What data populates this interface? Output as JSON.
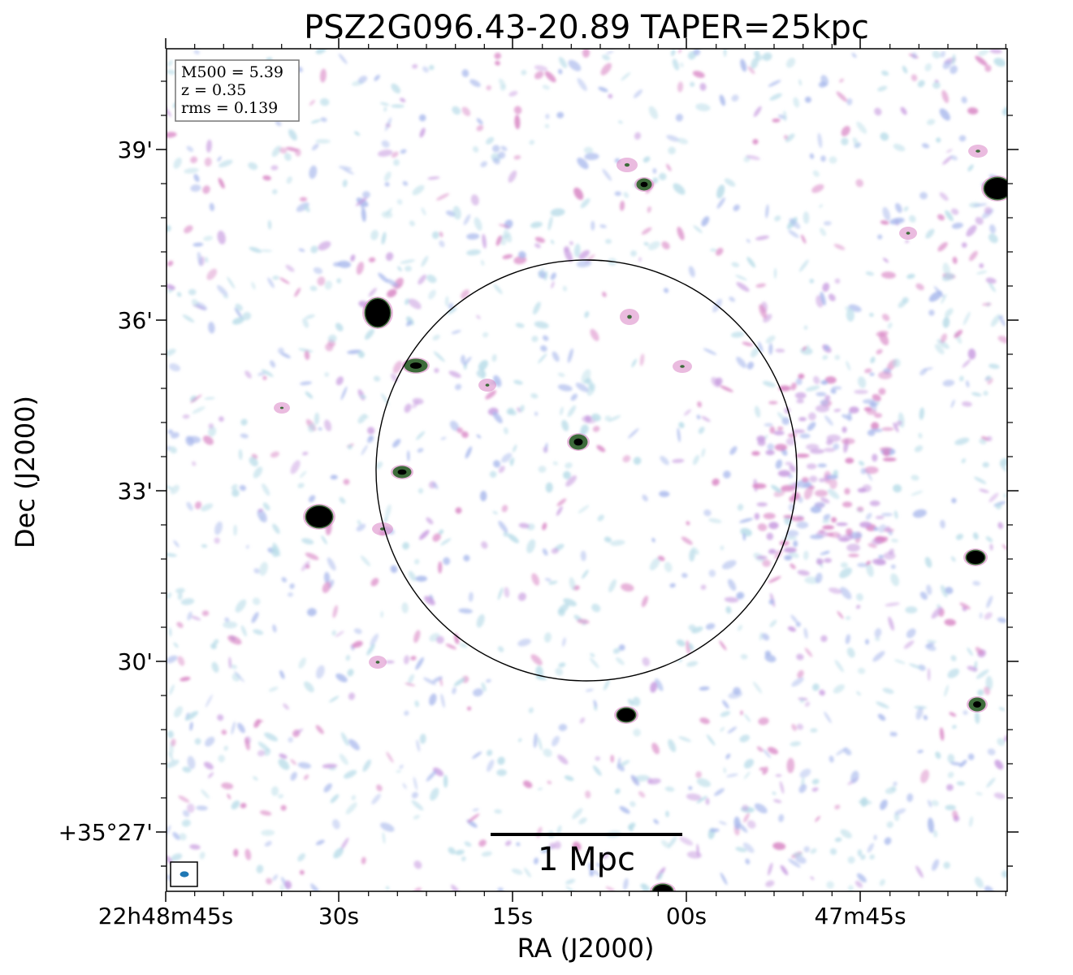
{
  "title": "PSZ2G096.43-20.89 TAPER=25kpc",
  "info_box": {
    "m500": "M500 = 5.39",
    "z": "z = 0.35",
    "rms": "rms = 0.139"
  },
  "axes": {
    "xlabel": "RA (J2000)",
    "ylabel": "Dec (J2000)",
    "xticks": [
      "22h48m45s",
      "30s",
      "15s",
      "00s",
      "47m45s"
    ],
    "yticks": [
      "+35°27'",
      "30'",
      "33'",
      "36'",
      "39'"
    ]
  },
  "scale_bar": {
    "label": "1 Mpc"
  },
  "colors": {
    "noise_light": "#b8dce8",
    "noise_blue": "#a8b8ec",
    "noise_violet": "#c89ce0",
    "noise_pink": "#d884c4",
    "source_core": "#000000",
    "source_halo": "#3d6b3a",
    "beam": "#1f77b4"
  }
}
